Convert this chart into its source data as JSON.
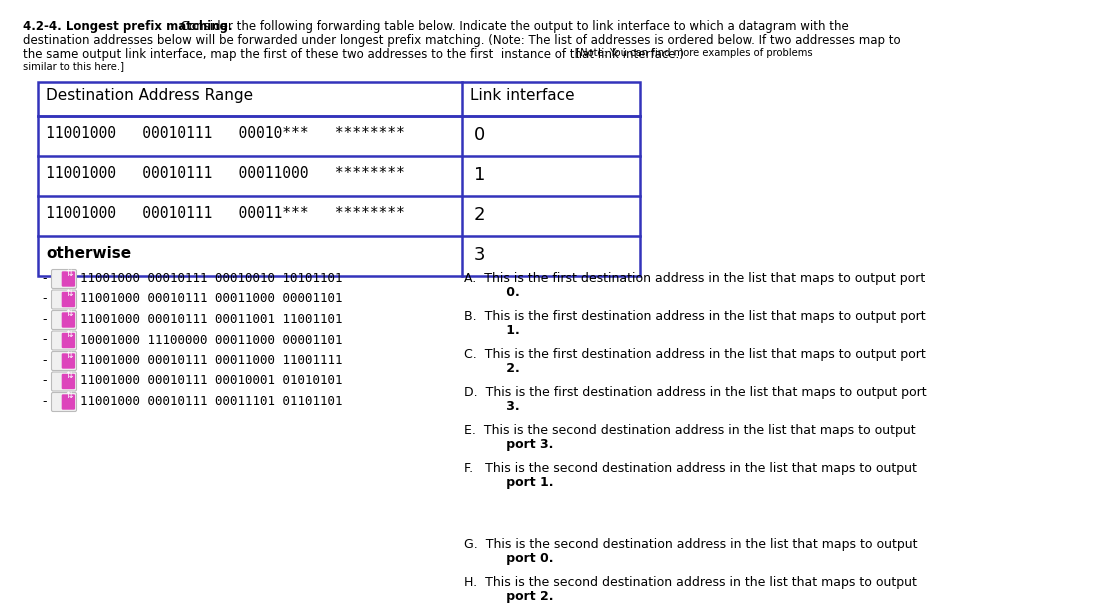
{
  "bg_color": "#ffffff",
  "table_border_color": "#3333bb",
  "text_color": "#000000",
  "title_bold": "4.2-4. Longest prefix matching.",
  "title_line1_rest": " Consider the following forwarding table below. Indicate the output to link interface to which a datagram with the",
  "title_line2": "destination addresses below will be forwarded under longest prefix matching. (Note: The list of addresses is ordered below. If two addresses map to",
  "title_line3": "the same output link interface, map the first of these two addresses to the first  instance of that link interface.)",
  "title_line3b": " [Note: You can find more examples of problems",
  "title_line4": "similar to this here.]",
  "table_header_left": "Destination Address Range",
  "table_header_right": "Link interface",
  "table_rows_left": [
    "11001000   00010111   00010***   ********",
    "11001000   00010111   00011000   ********",
    "11001000   00010111   00011***   ********",
    "otherwise"
  ],
  "table_rows_right": [
    "0",
    "1",
    "2",
    "3"
  ],
  "addresses": [
    "11001000 00010111 00010010 10101101",
    "11001000 00010111 00011000 00001101",
    "11001000 00010111 00011001 11001101",
    "10001000 11100000 00011000 00001101",
    "11001000 00010111 00011000 11001111",
    "11001000 00010111 00010001 01010101",
    "11001000 00010111 00011101 01101101"
  ],
  "answers_line1": [
    "A.  This is the first destination address in the list that maps to output port",
    "B.  This is the first destination address in the list that maps to output port",
    "C.  This is the first destination address in the list that maps to output port",
    "D.  This is the first destination address in the list that maps to output port",
    "E.  This is the second destination address in the list that maps to output",
    "F.   This is the second destination address in the list that maps to output",
    "",
    "G.  This is the second destination address in the list that maps to output",
    "H.  This is the second destination address in the list that maps to output"
  ],
  "answers_line2": [
    "0.",
    "1.",
    "2.",
    "3.",
    "port 3.",
    "port 1.",
    "",
    "port 0.",
    "port 2."
  ],
  "icon_fill": "#dd44bb",
  "icon_edge": "#aa33aa",
  "icon_pill_bg": "#f0f0f0",
  "icon_pill_edge": "#bbbbbb"
}
